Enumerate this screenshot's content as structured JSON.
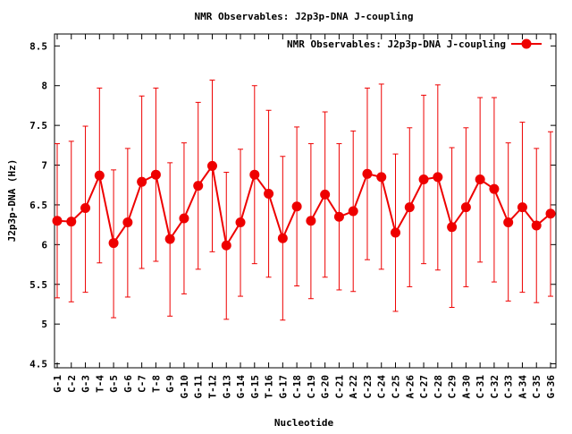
{
  "chart_data": {
    "type": "line",
    "title": "NMR Observables: J2p3p-DNA J-coupling",
    "xlabel": "Nucleotide",
    "ylabel": "J2p3p-DNA (Hz)",
    "ylim": [
      4.45,
      8.65
    ],
    "yticks": [
      4.5,
      5,
      5.5,
      6,
      6.5,
      7,
      7.5,
      8,
      8.5
    ],
    "ytick_labels": [
      "4.5",
      "5",
      "5.5",
      "6",
      "6.5",
      "7",
      "7.5",
      "8",
      "8.5"
    ],
    "grid": false,
    "legend_position": "top-right",
    "color": "#ee0000",
    "categories": [
      "G-1",
      "C-2",
      "G-3",
      "T-4",
      "G-5",
      "G-6",
      "C-7",
      "T-8",
      "G-9",
      "G-10",
      "G-11",
      "T-12",
      "G-13",
      "G-14",
      "G-15",
      "T-16",
      "G-17",
      "C-18",
      "C-19",
      "G-20",
      "C-21",
      "A-22",
      "C-23",
      "C-24",
      "C-25",
      "A-26",
      "C-27",
      "C-28",
      "C-29",
      "A-30",
      "C-31",
      "C-32",
      "C-33",
      "A-34",
      "C-35",
      "G-36"
    ],
    "series": [
      {
        "name": "NMR Observables: J2p3p-DNA J-coupling",
        "segments": [
          [
            0,
            17
          ],
          [
            18,
            35
          ]
        ],
        "values": [
          6.3,
          6.29,
          6.46,
          6.87,
          6.02,
          6.28,
          6.79,
          6.88,
          6.07,
          6.33,
          6.74,
          6.99,
          5.99,
          6.28,
          6.88,
          6.64,
          6.08,
          6.48,
          6.3,
          6.63,
          6.35,
          6.42,
          6.89,
          6.85,
          6.15,
          6.47,
          6.82,
          6.85,
          6.22,
          6.47,
          6.82,
          6.7,
          6.28,
          6.47,
          6.24,
          6.39
        ],
        "err_low": [
          5.33,
          5.28,
          5.4,
          5.77,
          5.08,
          5.34,
          5.7,
          5.79,
          5.1,
          5.38,
          5.69,
          5.91,
          5.06,
          5.35,
          5.76,
          5.59,
          5.05,
          5.48,
          5.32,
          5.59,
          5.43,
          5.41,
          5.81,
          5.69,
          5.16,
          5.47,
          5.76,
          5.68,
          5.21,
          5.47,
          5.78,
          5.53,
          5.29,
          5.4,
          5.27,
          5.35
        ],
        "err_high": [
          7.27,
          7.3,
          7.49,
          7.97,
          6.94,
          7.21,
          7.87,
          7.97,
          7.03,
          7.28,
          7.79,
          8.07,
          6.91,
          7.2,
          8.0,
          7.69,
          7.11,
          7.48,
          7.27,
          7.67,
          7.27,
          7.43,
          7.97,
          8.02,
          7.14,
          7.47,
          7.88,
          8.01,
          7.22,
          7.47,
          7.85,
          7.85,
          7.28,
          7.54,
          7.21,
          7.42
        ]
      }
    ]
  }
}
